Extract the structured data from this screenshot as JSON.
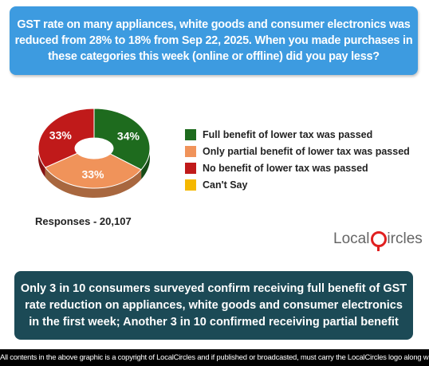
{
  "question": "GST rate on many appliances, white goods and consumer electronics was reduced from 28% to 18% from Sep 22, 2025. When you made purchases in these categories this week (online or offline) did you pay less?",
  "responses_label": "Responses - 20,107",
  "logo": {
    "left": "Local",
    "right": "ircles"
  },
  "answer": "Only 3 in 10 consumers surveyed confirm receiving full benefit of GST rate reduction on appliances, white goods and consumer electronics in the first week; Another 3 in 10 confirmed receiving partial benefit",
  "footer": "All contents in the above graphic is a copyright of LocalCircles and if published or broadcasted, must carry the LocalCircles logo along with it.",
  "chart_data": {
    "type": "pie",
    "title": "",
    "slices": [
      {
        "label": "Full benefit of lower tax was passed",
        "value": 34,
        "display": "34%",
        "color": "#1e6b1e"
      },
      {
        "label": "Only partial benefit of lower tax was passed",
        "value": 33,
        "display": "33%",
        "color": "#f0935a"
      },
      {
        "label": "No benefit of lower tax was passed",
        "value": 33,
        "display": "33%",
        "color": "#c01a1a"
      },
      {
        "label": "Can't Say",
        "value": 0,
        "display": "",
        "color": "#f5b800"
      }
    ],
    "donut": true,
    "legend_position": "right"
  }
}
